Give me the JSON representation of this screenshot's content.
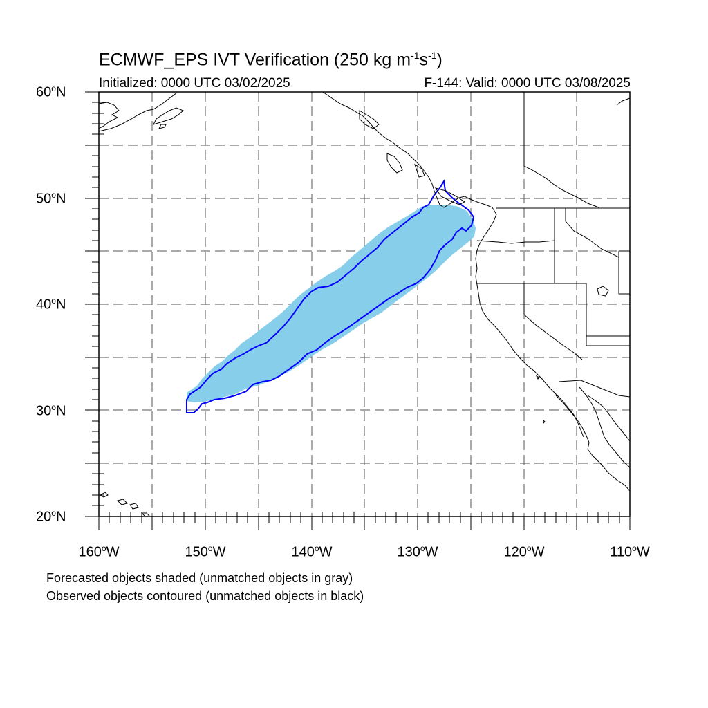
{
  "header": {
    "title_main": "ECMWF_EPS IVT Verification (250 kg m",
    "title_exp1": "-1",
    "title_mid": "s",
    "title_exp2": "-1",
    "title_end": ")",
    "initialized": "Initialized: 0000 UTC 03/02/2025",
    "valid": "F-144: Valid: 0000 UTC 03/08/2025"
  },
  "axes": {
    "lat_labels": [
      {
        "value": "60",
        "unit": "N"
      },
      {
        "value": "50",
        "unit": "N"
      },
      {
        "value": "40",
        "unit": "N"
      },
      {
        "value": "30",
        "unit": "N"
      },
      {
        "value": "20",
        "unit": "N"
      }
    ],
    "lon_labels": [
      {
        "value": "160",
        "unit": "W"
      },
      {
        "value": "150",
        "unit": "W"
      },
      {
        "value": "140",
        "unit": "W"
      },
      {
        "value": "130",
        "unit": "W"
      },
      {
        "value": "120",
        "unit": "W"
      },
      {
        "value": "110",
        "unit": "W"
      }
    ],
    "deg_symbol": "o",
    "lat_range": [
      20,
      60
    ],
    "lon_range": [
      -160,
      -110
    ],
    "grid": "dashed every 5 degrees"
  },
  "notes": {
    "line1": "Forecasted objects shaded (unmatched objects in gray)",
    "line2": "Observed objects contoured (unmatched objects in black)"
  },
  "colors": {
    "forecast_fill": "#87ceeb",
    "observed_contour": "#0000ff",
    "coastline": "#000000",
    "grid": "#555555"
  }
}
